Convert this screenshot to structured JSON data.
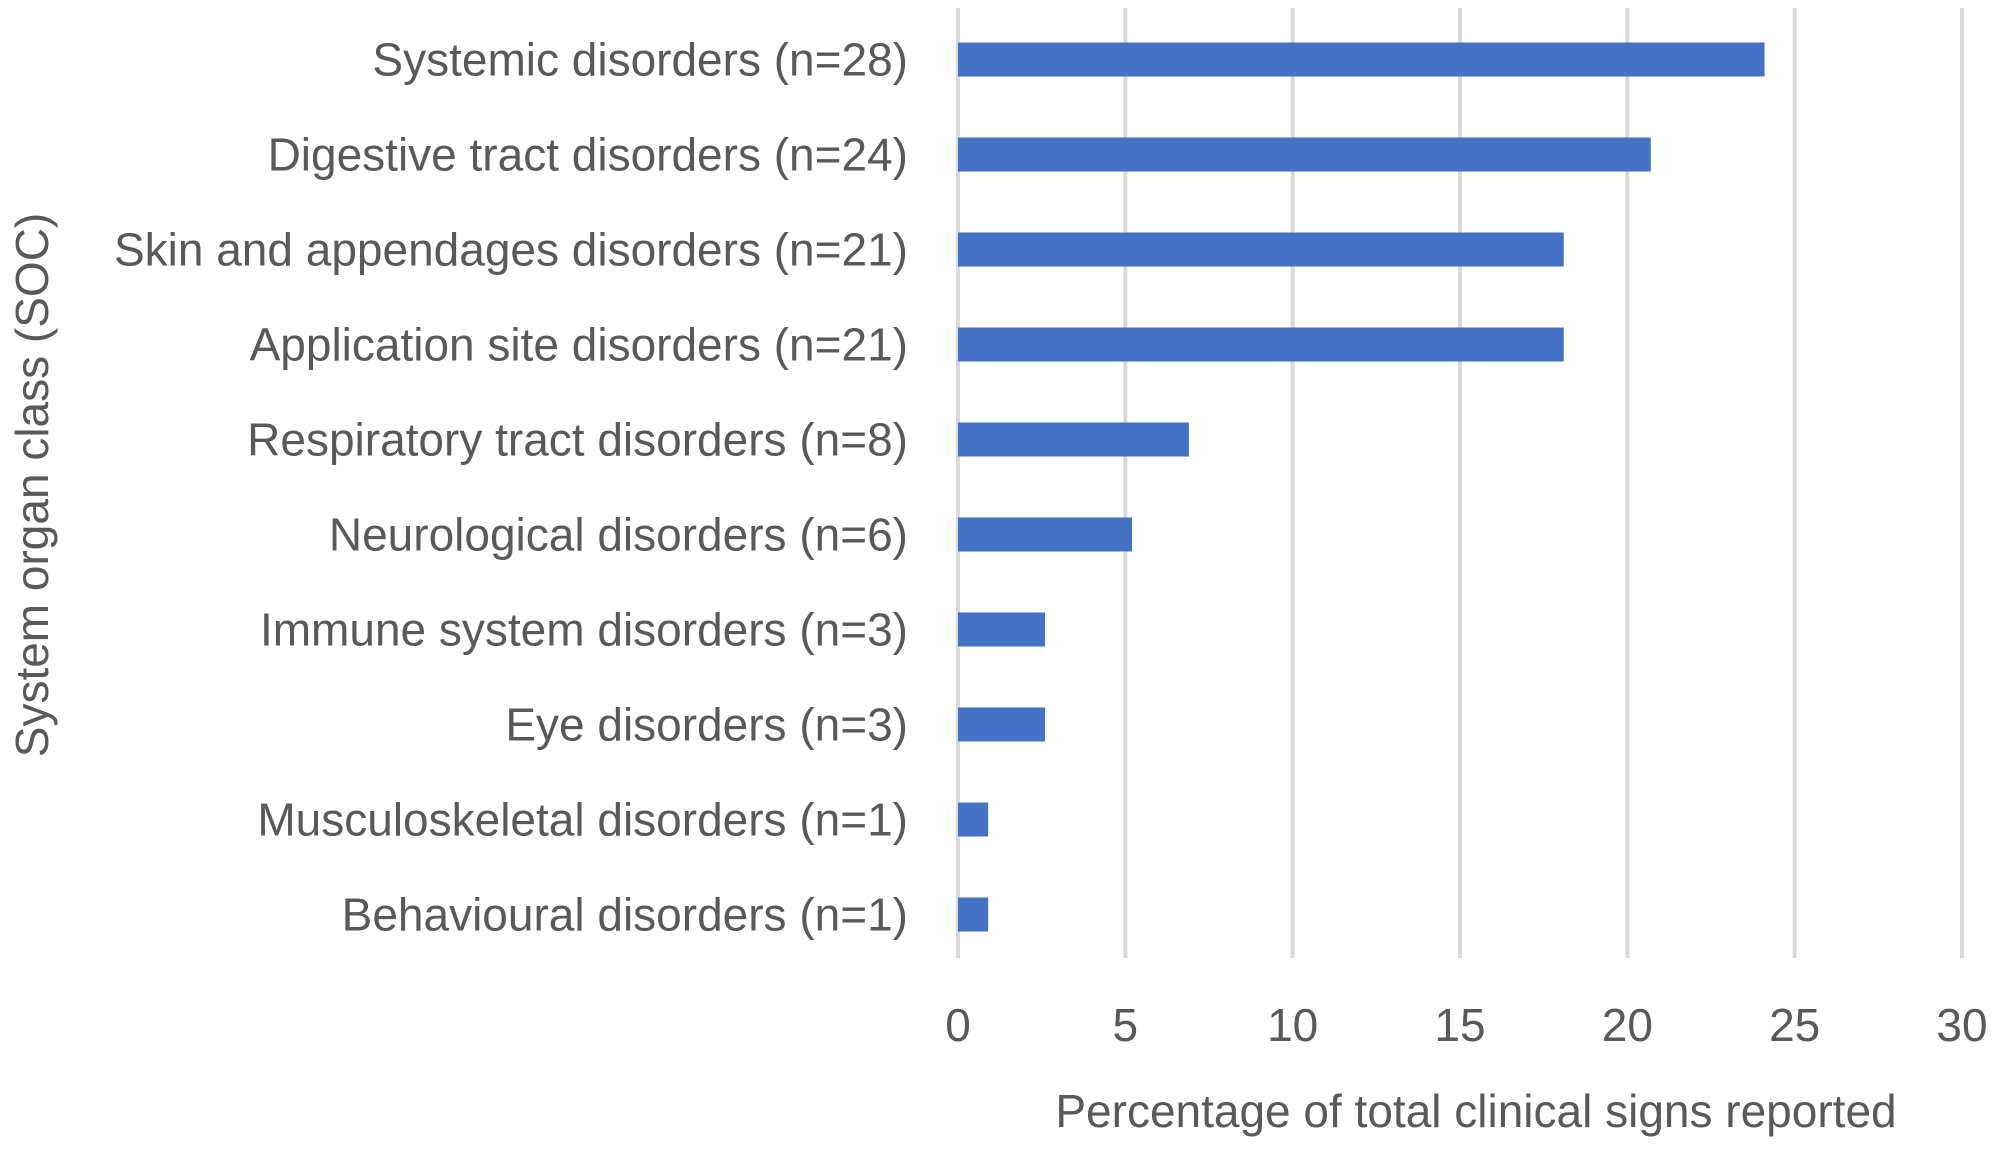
{
  "chart_data": {
    "type": "bar",
    "orientation": "horizontal",
    "title": "",
    "xlabel": "Percentage of total clinical signs reported",
    "ylabel": "System organ class (SOC)",
    "xlim": [
      0,
      30
    ],
    "xticks": [
      "0",
      "5",
      "10",
      "15",
      "20",
      "25",
      "30"
    ],
    "grid": true,
    "legend": "none",
    "bar_color": "#4472c4",
    "grid_color": "#d9d9d9",
    "text_color": "#595959",
    "categories": [
      "Systemic disorders (n=28)",
      "Digestive tract disorders (n=24)",
      "Skin and appendages disorders (n=21)",
      "Application site disorders (n=21)",
      "Respiratory tract disorders (n=8)",
      "Neurological disorders (n=6)",
      "Immune system disorders (n=3)",
      "Eye disorders (n=3)",
      "Musculoskeletal disorders (n=1)",
      "Behavioural disorders (n=1)"
    ],
    "values": [
      24.1,
      20.7,
      18.1,
      18.1,
      6.9,
      5.2,
      2.6,
      2.6,
      0.9,
      0.9
    ]
  }
}
